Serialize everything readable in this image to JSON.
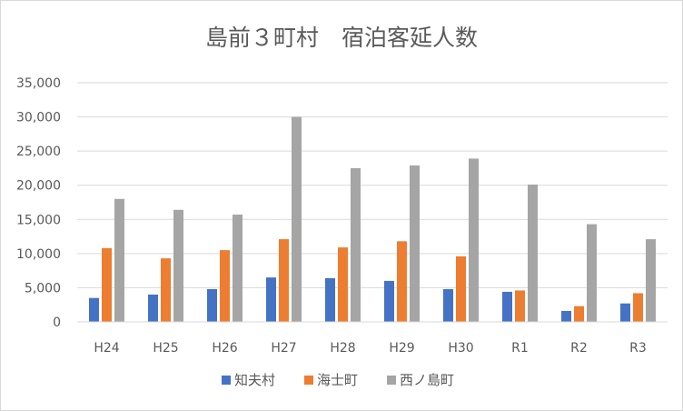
{
  "chart_data": {
    "type": "bar",
    "title": "島前３町村　宿泊客延人数",
    "xlabel": "",
    "ylabel": "",
    "categories": [
      "H24",
      "H25",
      "H26",
      "H27",
      "H28",
      "H29",
      "H30",
      "R1",
      "R2",
      "R3"
    ],
    "ylim": [
      0,
      35000
    ],
    "yticks": [
      0,
      5000,
      10000,
      15000,
      20000,
      25000,
      30000,
      35000
    ],
    "ytick_labels": [
      "0",
      "5,000",
      "10,000",
      "15,000",
      "20,000",
      "25,000",
      "30,000",
      "35,000"
    ],
    "grid": true,
    "legend_position": "bottom",
    "series": [
      {
        "name": "知夫村",
        "color": "#4472c4",
        "values": [
          3500,
          4000,
          4800,
          6500,
          6400,
          6000,
          4800,
          4400,
          1600,
          2700
        ]
      },
      {
        "name": "海士町",
        "color": "#ed7d31",
        "values": [
          10800,
          9300,
          10500,
          12100,
          10900,
          11800,
          9600,
          4600,
          2300,
          4200
        ]
      },
      {
        "name": "西ノ島町",
        "color": "#a5a5a5",
        "values": [
          18000,
          16400,
          15700,
          30000,
          22500,
          22900,
          23900,
          20100,
          14300,
          12100
        ]
      }
    ]
  }
}
